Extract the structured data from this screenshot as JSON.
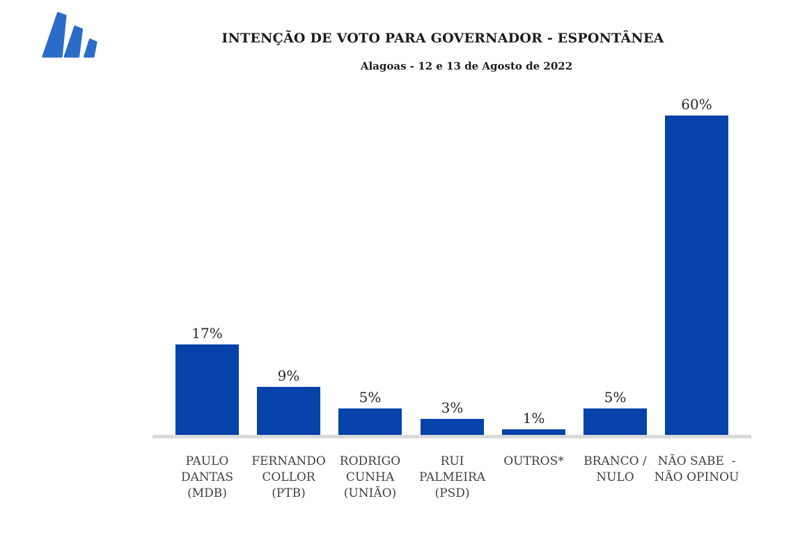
{
  "header": {
    "title": "INTENÇÃO DE VOTO PARA GOVERNADOR - ESPONTÂNEA",
    "subtitle": "Alagoas - 12 e 13 de Agosto de 2022"
  },
  "logo": {
    "icon": "three-slanted-stripes-mark",
    "color": "#2b6cc8"
  },
  "chart_data": {
    "type": "bar",
    "title": "INTENÇÃO DE VOTO PARA GOVERNADOR - ESPONTÂNEA",
    "subtitle": "Alagoas - 12 e 13 de Agosto de 2022",
    "categories": [
      "PAULO DANTAS (MDB)",
      "FERNANDO COLLOR (PTB)",
      "RODRIGO CUNHA (UNIÃO)",
      "RUI PALMEIRA (PSD)",
      "OUTROS*",
      "BRANCO / NULO",
      "NÃO SABE - NÃO OPINOU"
    ],
    "category_lines": [
      [
        "PAULO",
        "DANTAS",
        "(MDB)"
      ],
      [
        "FERNANDO",
        "COLLOR",
        "(PTB)"
      ],
      [
        "RODRIGO",
        "CUNHA",
        "(UNIÃO)"
      ],
      [
        "RUI",
        "PALMEIRA",
        "(PSD)"
      ],
      [
        "OUTROS*"
      ],
      [
        "BRANCO /",
        "NULO"
      ],
      [
        "NÃO SABE  -",
        "NÃO OPINOU"
      ]
    ],
    "values": [
      17,
      9,
      5,
      3,
      1,
      5,
      60
    ],
    "value_labels": [
      "17%",
      "9%",
      "5%",
      "3%",
      "1%",
      "5%",
      "60%"
    ],
    "xlabel": "",
    "ylabel": "",
    "ylim": [
      0,
      62
    ],
    "grid": false,
    "legend": "none",
    "data_labels": "above-bars",
    "bar_color": "#0542a9",
    "axis_line_color": "#d9d9d9",
    "label_color": "#3f3f3f",
    "value_label_color": "#262626"
  }
}
